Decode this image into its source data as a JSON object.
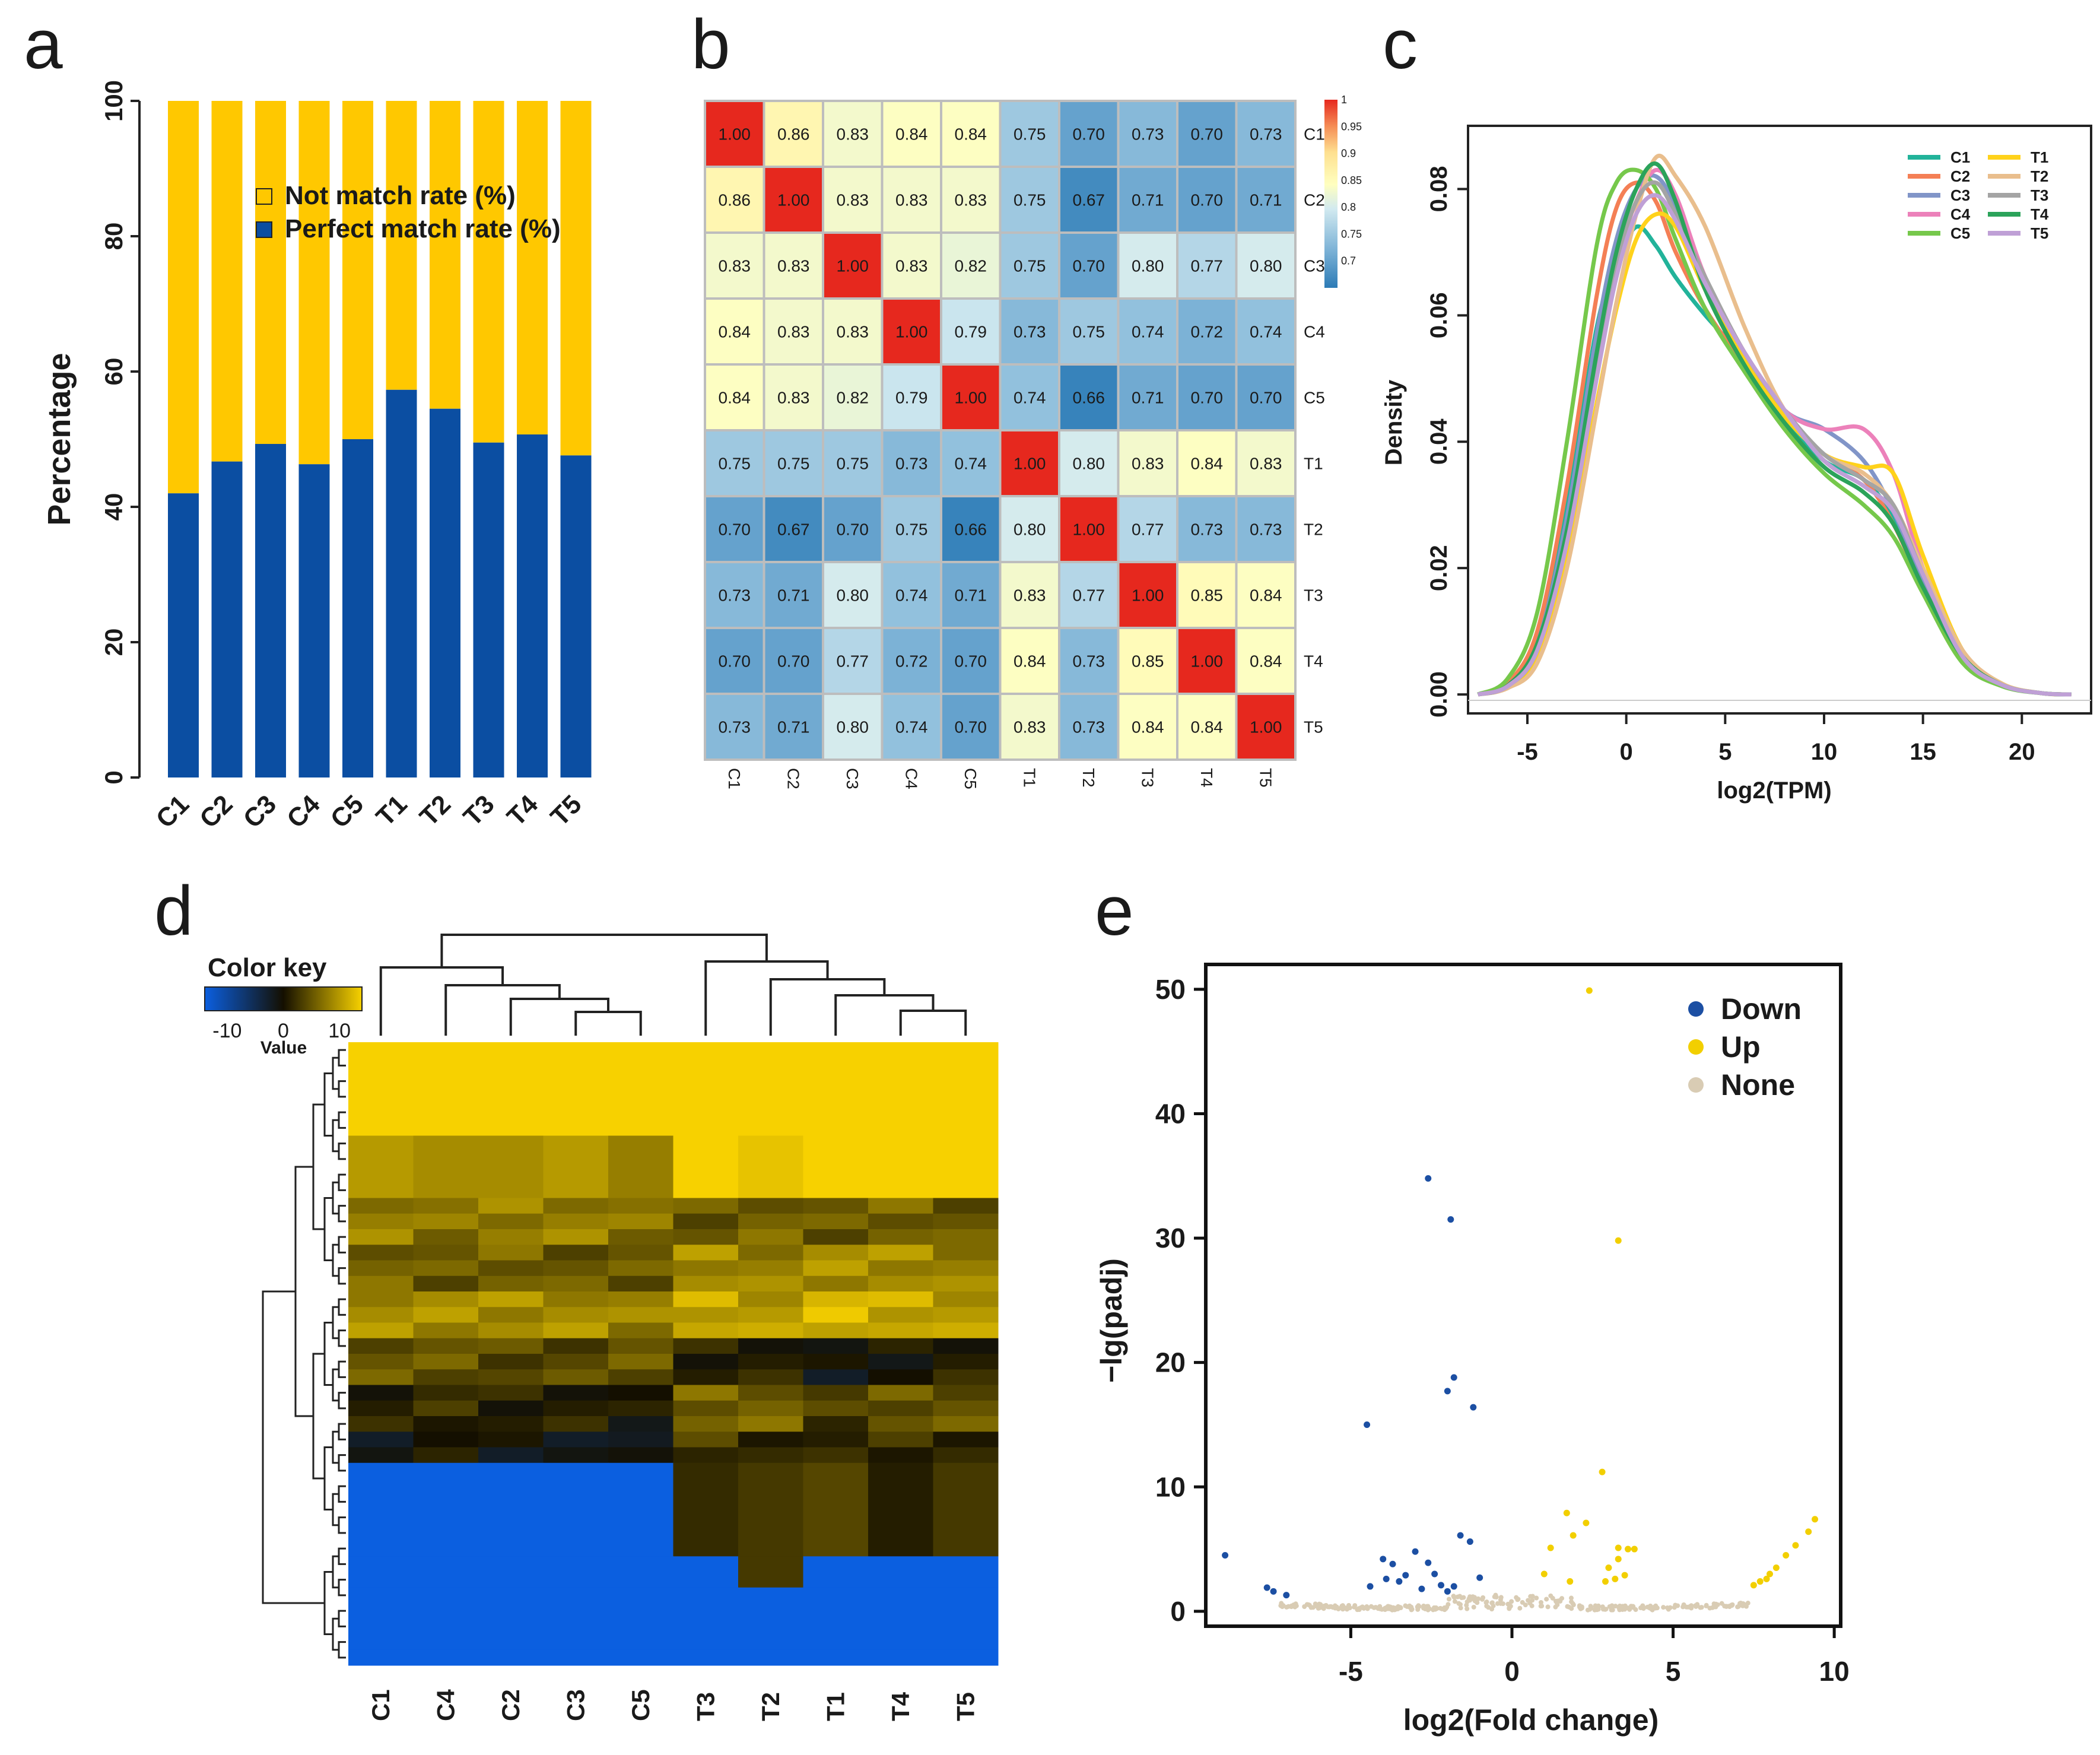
{
  "panels": {
    "a": "a",
    "b": "b",
    "c": "c",
    "d": "d",
    "e": "e"
  },
  "colors": {
    "yellow": "#FFC800",
    "blue": "#0B4EA2",
    "red": "#E8312B",
    "heat_yellow": "#F7D100",
    "heat_blue": "#0B5FE0",
    "up": "#F2CF00",
    "down": "#1C4FA3",
    "none": "#D9CCB4"
  },
  "chart_data": [
    {
      "id": "a",
      "type": "bar",
      "stacked": true,
      "title": "",
      "xlabel": "",
      "ylabel": "Percentage",
      "ylim": [
        0,
        100
      ],
      "yticks": [
        "0",
        "20",
        "40",
        "60",
        "80",
        "100"
      ],
      "categories": [
        "C1",
        "C2",
        "C3",
        "C4",
        "C5",
        "T1",
        "T2",
        "T3",
        "T4",
        "T5"
      ],
      "series": [
        {
          "name": "Perfect match rate (%)",
          "values": [
            42,
            46.7,
            49.3,
            46.3,
            50,
            57.3,
            54.5,
            49.5,
            50.7,
            47.6
          ]
        },
        {
          "name": "Not match rate (%)",
          "values": [
            58,
            53.3,
            50.7,
            53.7,
            50,
            42.7,
            45.5,
            50.5,
            49.3,
            52.4
          ]
        }
      ],
      "legend": [
        "Not match rate (%)",
        "Perfect match rate (%)"
      ],
      "legend_position": "top-right"
    },
    {
      "id": "b",
      "type": "heatmap",
      "title": "",
      "rows": [
        "C1",
        "C2",
        "C3",
        "C4",
        "C5",
        "T1",
        "T2",
        "T3",
        "T4",
        "T5"
      ],
      "cols": [
        "C1",
        "C2",
        "C3",
        "C4",
        "C5",
        "T1",
        "T2",
        "T3",
        "T4",
        "T5"
      ],
      "values": [
        [
          1.0,
          0.86,
          0.83,
          0.84,
          0.84,
          0.75,
          0.7,
          0.73,
          0.7,
          0.73
        ],
        [
          0.86,
          1.0,
          0.83,
          0.83,
          0.83,
          0.75,
          0.67,
          0.71,
          0.7,
          0.71
        ],
        [
          0.83,
          0.83,
          1.0,
          0.83,
          0.82,
          0.75,
          0.7,
          0.8,
          0.77,
          0.8
        ],
        [
          0.84,
          0.83,
          0.83,
          1.0,
          0.79,
          0.73,
          0.75,
          0.74,
          0.72,
          0.74
        ],
        [
          0.84,
          0.83,
          0.82,
          0.79,
          1.0,
          0.74,
          0.66,
          0.71,
          0.7,
          0.7
        ],
        [
          0.75,
          0.75,
          0.75,
          0.73,
          0.74,
          1.0,
          0.8,
          0.83,
          0.84,
          0.83
        ],
        [
          0.7,
          0.67,
          0.7,
          0.75,
          0.66,
          0.8,
          1.0,
          0.77,
          0.73,
          0.73
        ],
        [
          0.73,
          0.71,
          0.8,
          0.74,
          0.71,
          0.83,
          0.77,
          1.0,
          0.85,
          0.84
        ],
        [
          0.7,
          0.7,
          0.77,
          0.72,
          0.7,
          0.84,
          0.73,
          0.85,
          1.0,
          0.84
        ],
        [
          0.73,
          0.71,
          0.8,
          0.74,
          0.7,
          0.83,
          0.73,
          0.84,
          0.84,
          1.0
        ]
      ],
      "colorbar_labels": [
        "1",
        "0.95",
        "0.9",
        "0.85",
        "0.8",
        "0.75",
        "0.7"
      ],
      "colorbar_range": [
        0.65,
        1.0
      ]
    },
    {
      "id": "c",
      "type": "line",
      "title": "",
      "xlabel": "log2(TPM)",
      "ylabel": "Density",
      "xlim": [
        -8,
        23.5
      ],
      "ylim": [
        -0.003,
        0.09
      ],
      "xticks": [
        "-5",
        "0",
        "5",
        "10",
        "15",
        "20"
      ],
      "yticks": [
        "0.00",
        "0.02",
        "0.04",
        "0.06",
        "0.08"
      ],
      "x": [
        -7.5,
        -6,
        -4.5,
        -3,
        -1.5,
        -0.5,
        0.5,
        1.5,
        2.5,
        4,
        6,
        8,
        10,
        12,
        13.5,
        15,
        17,
        19,
        21,
        22.5
      ],
      "series": [
        {
          "name": "C1",
          "color": "#22B39A",
          "values": [
            0,
            0.0015,
            0.009,
            0.03,
            0.058,
            0.068,
            0.074,
            0.071,
            0.066,
            0.06,
            0.053,
            0.044,
            0.037,
            0.034,
            0.028,
            0.018,
            0.006,
            0.0015,
            0.0002,
            0
          ]
        },
        {
          "name": "C2",
          "color": "#F47F55",
          "values": [
            0,
            0.0018,
            0.01,
            0.033,
            0.063,
            0.077,
            0.081,
            0.078,
            0.07,
            0.061,
            0.052,
            0.044,
            0.038,
            0.034,
            0.027,
            0.017,
            0.006,
            0.0015,
            0.0002,
            0
          ]
        },
        {
          "name": "C3",
          "color": "#8195C8",
          "values": [
            0,
            0.0014,
            0.008,
            0.028,
            0.057,
            0.072,
            0.08,
            0.082,
            0.077,
            0.064,
            0.054,
            0.045,
            0.042,
            0.037,
            0.029,
            0.018,
            0.006,
            0.0015,
            0.0002,
            0
          ]
        },
        {
          "name": "C4",
          "color": "#EC81BA",
          "values": [
            0,
            0.0012,
            0.007,
            0.025,
            0.052,
            0.068,
            0.078,
            0.083,
            0.079,
            0.066,
            0.054,
            0.045,
            0.042,
            0.042,
            0.035,
            0.02,
            0.006,
            0.0015,
            0.0002,
            0
          ]
        },
        {
          "name": "C5",
          "color": "#76C84B",
          "values": [
            0,
            0.0025,
            0.013,
            0.04,
            0.071,
            0.081,
            0.083,
            0.08,
            0.072,
            0.061,
            0.051,
            0.042,
            0.035,
            0.03,
            0.025,
            0.016,
            0.005,
            0.0013,
            0.0002,
            0
          ]
        },
        {
          "name": "T1",
          "color": "#FFD21B",
          "values": [
            0,
            0.0012,
            0.006,
            0.022,
            0.046,
            0.061,
            0.072,
            0.076,
            0.074,
            0.064,
            0.053,
            0.044,
            0.038,
            0.036,
            0.035,
            0.022,
            0.007,
            0.0017,
            0.0002,
            0
          ]
        },
        {
          "name": "T2",
          "color": "#E9BE8D",
          "values": [
            0,
            0.001,
            0.005,
            0.02,
            0.045,
            0.062,
            0.076,
            0.085,
            0.082,
            0.074,
            0.058,
            0.045,
            0.038,
            0.035,
            0.03,
            0.02,
            0.007,
            0.0017,
            0.0002,
            0
          ]
        },
        {
          "name": "T3",
          "color": "#A4A4A4",
          "values": [
            0,
            0.0013,
            0.007,
            0.025,
            0.052,
            0.068,
            0.078,
            0.081,
            0.076,
            0.066,
            0.054,
            0.045,
            0.038,
            0.034,
            0.03,
            0.019,
            0.006,
            0.0015,
            0.0002,
            0
          ]
        },
        {
          "name": "T4",
          "color": "#2BA35A",
          "values": [
            0,
            0.0014,
            0.008,
            0.026,
            0.054,
            0.07,
            0.08,
            0.084,
            0.078,
            0.064,
            0.052,
            0.043,
            0.036,
            0.032,
            0.027,
            0.017,
            0.006,
            0.0015,
            0.0002,
            0
          ]
        },
        {
          "name": "T5",
          "color": "#BFA0D6",
          "values": [
            0,
            0.0013,
            0.007,
            0.024,
            0.05,
            0.066,
            0.076,
            0.079,
            0.075,
            0.065,
            0.054,
            0.045,
            0.037,
            0.033,
            0.029,
            0.019,
            0.006,
            0.0015,
            0.0002,
            0
          ]
        }
      ],
      "legend_position": "top-right"
    },
    {
      "id": "d",
      "type": "heatmap",
      "title": "",
      "colorkey_title": "Color key",
      "colorkey_sublabel": "Value",
      "colorkey_ticks": [
        "-10",
        "0",
        "10"
      ],
      "columns": [
        "C1",
        "C4",
        "C2",
        "C3",
        "C5",
        "T3",
        "T2",
        "T1",
        "T4",
        "T5"
      ],
      "blocks": [
        {
          "rows": 6,
          "values": [
            14,
            14,
            14,
            14,
            14,
            14,
            14,
            14,
            14,
            14
          ]
        },
        {
          "rows": 4,
          "values": [
            10,
            9,
            9,
            10,
            8,
            14,
            13,
            14,
            14,
            14
          ]
        },
        {
          "rows": 3,
          "values": [
            8,
            7,
            8,
            8,
            7,
            5,
            6,
            5,
            6,
            5
          ]
        },
        {
          "rows": 3,
          "values": [
            6,
            5,
            6,
            5,
            5,
            9,
            8,
            9,
            9,
            8
          ]
        },
        {
          "rows": 3,
          "values": [
            9,
            9,
            9,
            9,
            8,
            11,
            10,
            12,
            11,
            10
          ]
        },
        {
          "rows": 3,
          "values": [
            5,
            5,
            4,
            4,
            5,
            1,
            1,
            -1,
            0,
            1
          ]
        },
        {
          "rows": 3,
          "values": [
            1,
            2,
            1,
            1,
            0,
            6,
            6,
            3,
            5,
            5
          ]
        },
        {
          "rows": 2,
          "values": [
            -1,
            0,
            -1,
            -1,
            -2,
            3,
            2,
            1,
            2,
            2
          ]
        },
        {
          "rows": 6,
          "values": [
            -14,
            -14,
            -14,
            -14,
            -14,
            2,
            3,
            4,
            1,
            3
          ]
        },
        {
          "rows": 2,
          "values": [
            -14,
            -14,
            -14,
            -14,
            -14,
            -14,
            3,
            -14,
            -14,
            -14
          ]
        },
        {
          "rows": 5,
          "values": [
            -14,
            -14,
            -14,
            -14,
            -14,
            -14,
            -14,
            -14,
            -14,
            -14
          ]
        }
      ],
      "value_range": [
        -14,
        14
      ]
    },
    {
      "id": "e",
      "type": "scatter",
      "title": "",
      "xlabel": "log2(Fold change)",
      "ylabel": "−lg(padj)",
      "xlim": [
        -9.5,
        10.2
      ],
      "ylim": [
        -1.2,
        52
      ],
      "xticks": [
        "-5",
        "0",
        "5",
        "10"
      ],
      "yticks": [
        "0",
        "10",
        "20",
        "30",
        "40",
        "50"
      ],
      "legend": [
        "Down",
        "Up",
        "None"
      ],
      "legend_position": "top-right",
      "series": [
        {
          "name": "Down",
          "points": [
            [
              -2.6,
              34.8
            ],
            [
              -1.9,
              31.5
            ],
            [
              -1.8,
              18.8
            ],
            [
              -2.0,
              17.7
            ],
            [
              -1.2,
              16.4
            ],
            [
              -4.5,
              15.0
            ],
            [
              -8.9,
              4.5
            ],
            [
              -7.6,
              1.9
            ],
            [
              -7.4,
              1.6
            ],
            [
              -7.0,
              1.3
            ],
            [
              -4.0,
              4.2
            ],
            [
              -3.7,
              3.8
            ],
            [
              -3.3,
              2.9
            ],
            [
              -3.0,
              4.8
            ],
            [
              -2.6,
              3.9
            ],
            [
              -2.4,
              3.0
            ],
            [
              -2.2,
              2.1
            ],
            [
              -1.6,
              6.1
            ],
            [
              -1.3,
              5.6
            ],
            [
              -1.0,
              2.7
            ],
            [
              -3.5,
              2.4
            ],
            [
              -2.8,
              1.8
            ],
            [
              -1.8,
              2.0
            ],
            [
              -4.4,
              2.0
            ],
            [
              -3.9,
              2.6
            ],
            [
              -2.0,
              1.6
            ]
          ]
        },
        {
          "name": "Up",
          "points": [
            [
              2.4,
              49.9
            ],
            [
              3.3,
              29.8
            ],
            [
              2.8,
              11.2
            ],
            [
              2.3,
              7.1
            ],
            [
              1.9,
              6.1
            ],
            [
              1.7,
              7.9
            ],
            [
              1.2,
              5.1
            ],
            [
              1.0,
              3.0
            ],
            [
              3.3,
              5.1
            ],
            [
              3.6,
              5.0
            ],
            [
              3.8,
              5.0
            ],
            [
              3.0,
              3.5
            ],
            [
              3.2,
              2.6
            ],
            [
              3.5,
              2.9
            ],
            [
              1.8,
              2.4
            ],
            [
              2.9,
              2.4
            ],
            [
              3.3,
              4.2
            ],
            [
              7.5,
              2.1
            ],
            [
              7.9,
              2.6
            ],
            [
              8.2,
              3.5
            ],
            [
              8.5,
              4.5
            ],
            [
              8.8,
              5.3
            ],
            [
              9.2,
              6.4
            ],
            [
              9.4,
              7.4
            ],
            [
              8.0,
              3.0
            ],
            [
              7.7,
              2.4
            ]
          ]
        },
        {
          "name": "None",
          "generated": true,
          "description": "background V-shaped cloud of non-significant genes near y = 0-2"
        }
      ]
    }
  ]
}
